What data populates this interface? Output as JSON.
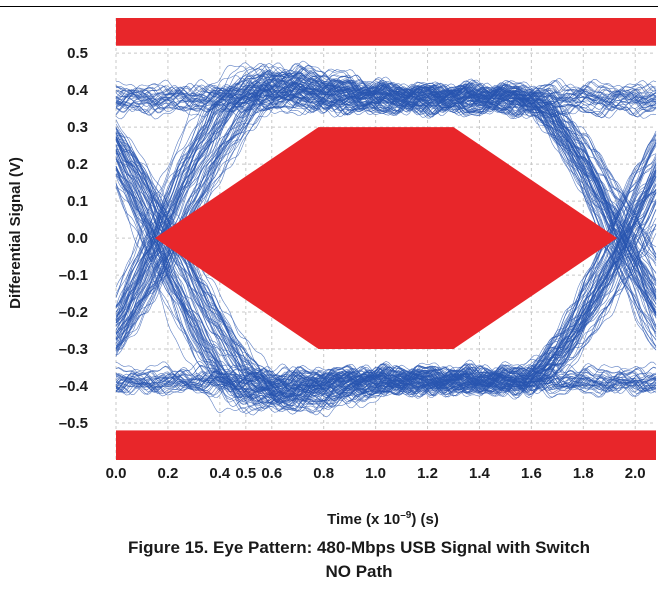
{
  "chart_data": {
    "type": "line",
    "title": "",
    "xlabel_prefix": "Time (x 10",
    "xlabel_exp": "–9",
    "xlabel_suffix": ") (s)",
    "ylabel": "Differential Signal (V)",
    "xlim": [
      0.0,
      2.08
    ],
    "ylim": [
      -0.6,
      0.595
    ],
    "grid": true,
    "x_ticks": [
      "0.0",
      "0.2",
      "0.4",
      "0.5",
      "0.6",
      "0.8",
      "1.0",
      "1.2",
      "1.4",
      "1.6",
      "1.8",
      "2.0"
    ],
    "x_tick_values": [
      0.0,
      0.2,
      0.4,
      0.5,
      0.6,
      0.8,
      1.0,
      1.2,
      1.4,
      1.6,
      1.8,
      2.0
    ],
    "y_ticks": [
      "0.5",
      "0.4",
      "0.3",
      "0.2",
      "0.1",
      "0.0",
      "–0.1",
      "–0.2",
      "–0.3",
      "–0.4",
      "–0.5"
    ],
    "y_tick_values": [
      0.5,
      0.4,
      0.3,
      0.2,
      0.1,
      0.0,
      -0.1,
      -0.2,
      -0.3,
      -0.4,
      -0.5
    ],
    "eye_mask": {
      "polygon": [
        [
          0.15,
          0.0
        ],
        [
          0.78,
          0.3
        ],
        [
          1.3,
          0.3
        ],
        [
          1.93,
          0.0
        ],
        [
          1.3,
          -0.3
        ],
        [
          0.78,
          -0.3
        ]
      ],
      "upper_bar_min": 0.52,
      "lower_bar_max": -0.52,
      "color": "#e8262a"
    },
    "signal": {
      "high_level": 0.375,
      "low_level": -0.385,
      "crossing_times": [
        0.0,
        2.0
      ],
      "color": "#2a55b0"
    }
  },
  "caption": {
    "line1": "Figure 15. Eye Pattern: 480-Mbps USB Signal with Switch",
    "line2": "NO Path"
  }
}
